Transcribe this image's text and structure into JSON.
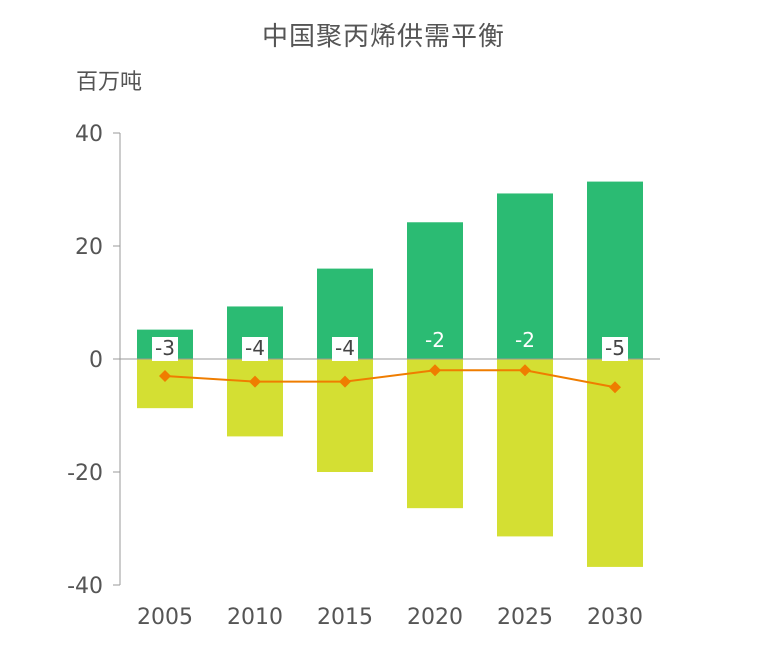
{
  "chart_data": {
    "type": "bar",
    "title": "中国聚丙烯供需平衡",
    "ylabel": "百万吨",
    "xlabel": "",
    "categories": [
      "2005",
      "2010",
      "2015",
      "2020",
      "2025",
      "2030"
    ],
    "series": [
      {
        "type": "bar",
        "values": [
          5.2,
          9.3,
          16.0,
          24.2,
          29.3,
          31.4
        ],
        "color": "#2bbb73"
      },
      {
        "type": "bar",
        "values": [
          -8.7,
          -13.7,
          -20.0,
          -26.4,
          -31.4,
          -36.8
        ],
        "color": "#d4df33"
      },
      {
        "type": "line",
        "values": [
          -3,
          -4,
          -4,
          -2,
          -2,
          -5
        ],
        "labels": [
          "-3",
          "-4",
          "-4",
          "-2",
          "-2",
          "-5"
        ],
        "color": "#ef7d00"
      }
    ],
    "ylim": [
      -40,
      40
    ],
    "yticks": [
      "40",
      "20",
      "0",
      "-20",
      "-40"
    ],
    "grid": false
  }
}
